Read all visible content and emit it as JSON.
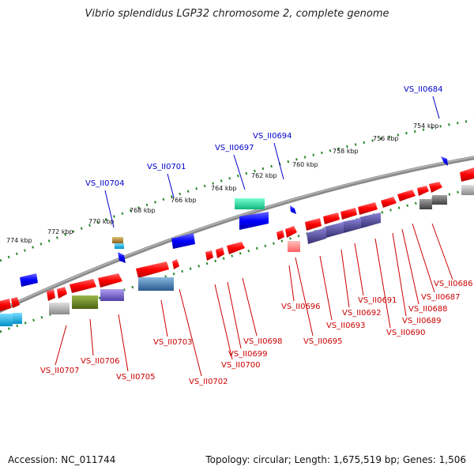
{
  "header": {
    "title": "Vibrio splendidus LGP32 chromosome 2, complete genome"
  },
  "footer": {
    "accession": "Accession: NC_011744",
    "summary": "Topology: circular; Length: 1,675,519 bp; Genes: 1,506"
  },
  "scale_ticks": [
    {
      "label": "754 kbp"
    },
    {
      "label": "756 kbp"
    },
    {
      "label": "758 kbp"
    },
    {
      "label": "760 kbp"
    },
    {
      "label": "762 kbp"
    },
    {
      "label": "764 kbp"
    },
    {
      "label": "766 kbp"
    },
    {
      "label": "768 kbp"
    },
    {
      "label": "770 kbp"
    },
    {
      "label": "772 kbp"
    },
    {
      "label": "774 kbp"
    }
  ],
  "gene_labels_top": [
    {
      "label": "VS_II0684",
      "color": "#0000cc"
    },
    {
      "label": "VS_II0694",
      "color": "#0000cc"
    },
    {
      "label": "VS_II0697",
      "color": "#0000cc"
    },
    {
      "label": "VS_II0701",
      "color": "#0000cc"
    },
    {
      "label": "VS_II0704",
      "color": "#0000cc"
    }
  ],
  "gene_labels_bottom": [
    {
      "label": "VS_II0686",
      "color": "#cc0000"
    },
    {
      "label": "VS_II0687",
      "color": "#cc0000"
    },
    {
      "label": "VS_II0688",
      "color": "#cc0000"
    },
    {
      "label": "VS_II0689",
      "color": "#cc0000"
    },
    {
      "label": "VS_II0690",
      "color": "#cc0000"
    },
    {
      "label": "VS_II0691",
      "color": "#cc0000"
    },
    {
      "label": "VS_II0692",
      "color": "#cc0000"
    },
    {
      "label": "VS_II0693",
      "color": "#cc0000"
    },
    {
      "label": "VS_II0695",
      "color": "#cc0000"
    },
    {
      "label": "VS_II0696",
      "color": "#cc0000"
    },
    {
      "label": "VS_II0698",
      "color": "#cc0000"
    },
    {
      "label": "VS_II0699",
      "color": "#cc0000"
    },
    {
      "label": "VS_II0700",
      "color": "#cc0000"
    },
    {
      "label": "VS_II0702",
      "color": "#cc0000"
    },
    {
      "label": "VS_II0703",
      "color": "#cc0000"
    },
    {
      "label": "VS_II0705",
      "color": "#cc0000"
    },
    {
      "label": "VS_II0706",
      "color": "#cc0000"
    },
    {
      "label": "VS_II0707",
      "color": "#cc0000"
    }
  ],
  "colors": {
    "backbone": "#777777",
    "tick_track": "#2a8a2a",
    "forward_gene": "#ff1a1a",
    "reverse_gene": "#1a1aff",
    "rna_gene": "#20d9a0",
    "cog_purple": "#5a50a8",
    "cog_olive": "#6b8a1e",
    "cog_cyan": "#00b0e8",
    "cog_grey": "#9a9a9a",
    "cog_pink": "#ff8a8a",
    "cog_steel": "#4a80b8",
    "cog_lavender": "#8070d0",
    "cog_dark": "#555555"
  }
}
